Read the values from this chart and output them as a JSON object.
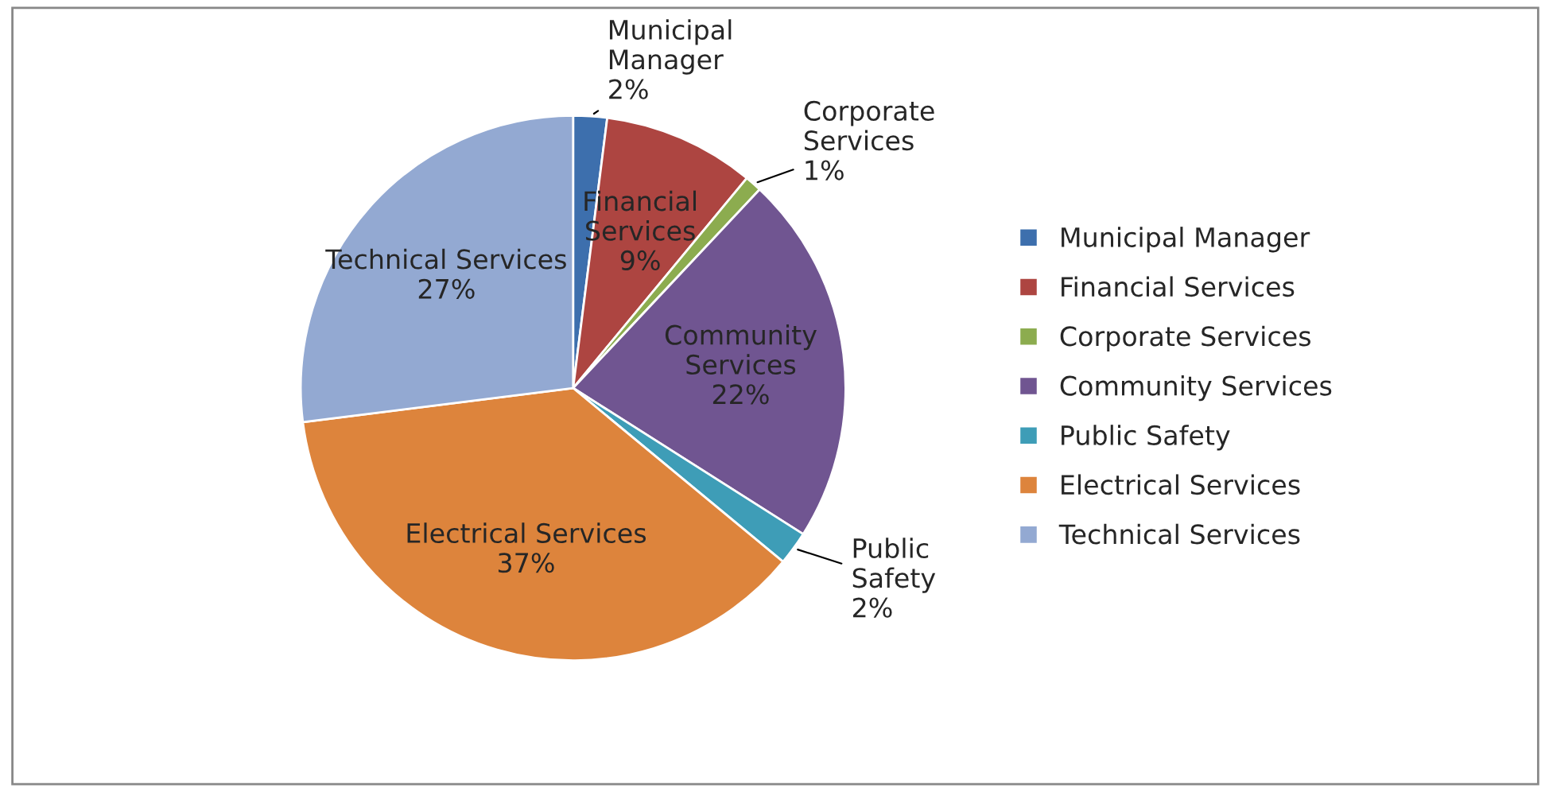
{
  "chart_data": {
    "type": "pie",
    "categories": [
      "Municipal Manager",
      "Financial Services",
      "Corporate Services",
      "Community Services",
      "Public Safety",
      "Electrical Services",
      "Technical Services"
    ],
    "values": [
      2,
      9,
      1,
      22,
      2,
      37,
      27
    ],
    "value_labels": [
      "2%",
      "9%",
      "1%",
      "22%",
      "2%",
      "37%",
      "27%"
    ],
    "colors": [
      "#3d6fad",
      "#ad4541",
      "#8cac4f",
      "#705591",
      "#3e9db7",
      "#dd843c",
      "#93a9d2"
    ],
    "legend": "right"
  }
}
